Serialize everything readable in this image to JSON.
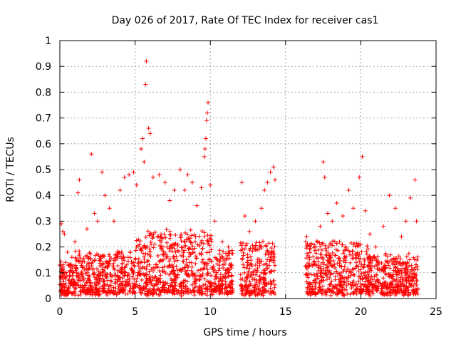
{
  "chart_data": {
    "type": "scatter",
    "title": "Day 026 of 2017, Rate Of TEC Index for receiver cas1",
    "xlabel": "GPS time / hours",
    "ylabel": "ROTI / TECUs",
    "xlim": [
      0,
      25
    ],
    "ylim": [
      0,
      1
    ],
    "x_ticks": [
      0,
      5,
      10,
      15,
      20,
      25
    ],
    "x_tick_labels": [
      "0",
      "5",
      "10",
      "15",
      "20",
      "25"
    ],
    "y_ticks": [
      0,
      0.1,
      0.2,
      0.3,
      0.4,
      0.5,
      0.6,
      0.7,
      0.8,
      0.9,
      1
    ],
    "y_tick_labels": [
      "0",
      "0.1",
      "0.2",
      "0.3",
      "0.4",
      "0.5",
      "0.6",
      "0.7",
      "0.8",
      "0.9",
      "1"
    ],
    "grid": true,
    "marker": "plus",
    "marker_color": "#ff0000",
    "data_gap_hours": [
      11.5,
      16.3
    ],
    "points": [
      [
        0.1,
        0.29
      ],
      [
        0.2,
        0.26
      ],
      [
        0.3,
        0.25
      ],
      [
        0.5,
        0.18
      ],
      [
        0.8,
        0.16
      ],
      [
        1.0,
        0.22
      ],
      [
        1.2,
        0.41
      ],
      [
        1.3,
        0.46
      ],
      [
        1.5,
        0.12
      ],
      [
        1.8,
        0.27
      ],
      [
        2.1,
        0.56
      ],
      [
        2.3,
        0.33
      ],
      [
        2.5,
        0.3
      ],
      [
        2.8,
        0.49
      ],
      [
        3.0,
        0.4
      ],
      [
        3.3,
        0.35
      ],
      [
        3.6,
        0.3
      ],
      [
        4.0,
        0.42
      ],
      [
        4.3,
        0.47
      ],
      [
        4.6,
        0.48
      ],
      [
        4.9,
        0.49
      ],
      [
        5.1,
        0.44
      ],
      [
        5.4,
        0.58
      ],
      [
        5.5,
        0.62
      ],
      [
        5.6,
        0.53
      ],
      [
        5.7,
        0.83
      ],
      [
        5.75,
        0.92
      ],
      [
        5.9,
        0.66
      ],
      [
        6.0,
        0.64
      ],
      [
        6.2,
        0.47
      ],
      [
        6.6,
        0.48
      ],
      [
        7.0,
        0.45
      ],
      [
        7.3,
        0.38
      ],
      [
        7.6,
        0.42
      ],
      [
        8.0,
        0.5
      ],
      [
        8.3,
        0.42
      ],
      [
        8.5,
        0.48
      ],
      [
        8.8,
        0.45
      ],
      [
        9.1,
        0.36
      ],
      [
        9.4,
        0.43
      ],
      [
        9.6,
        0.55
      ],
      [
        9.65,
        0.58
      ],
      [
        9.7,
        0.62
      ],
      [
        9.75,
        0.69
      ],
      [
        9.8,
        0.72
      ],
      [
        9.85,
        0.76
      ],
      [
        10.0,
        0.44
      ],
      [
        10.3,
        0.3
      ],
      [
        10.8,
        0.22
      ],
      [
        11.2,
        0.2
      ],
      [
        12.1,
        0.45
      ],
      [
        12.3,
        0.32
      ],
      [
        12.6,
        0.26
      ],
      [
        13.0,
        0.3
      ],
      [
        13.4,
        0.35
      ],
      [
        13.6,
        0.42
      ],
      [
        13.8,
        0.45
      ],
      [
        14.0,
        0.49
      ],
      [
        14.2,
        0.51
      ],
      [
        14.3,
        0.46
      ],
      [
        16.4,
        0.24
      ],
      [
        16.6,
        0.19
      ],
      [
        17.0,
        0.2
      ],
      [
        17.3,
        0.28
      ],
      [
        17.5,
        0.53
      ],
      [
        17.6,
        0.47
      ],
      [
        17.8,
        0.33
      ],
      [
        18.1,
        0.3
      ],
      [
        18.4,
        0.37
      ],
      [
        18.8,
        0.32
      ],
      [
        19.2,
        0.42
      ],
      [
        19.5,
        0.35
      ],
      [
        19.9,
        0.47
      ],
      [
        20.1,
        0.55
      ],
      [
        20.3,
        0.34
      ],
      [
        20.6,
        0.25
      ],
      [
        21.0,
        0.2
      ],
      [
        21.5,
        0.28
      ],
      [
        21.9,
        0.4
      ],
      [
        22.3,
        0.35
      ],
      [
        22.7,
        0.24
      ],
      [
        23.0,
        0.3
      ],
      [
        23.3,
        0.39
      ],
      [
        23.6,
        0.46
      ],
      [
        23.7,
        0.3
      ]
    ]
  }
}
